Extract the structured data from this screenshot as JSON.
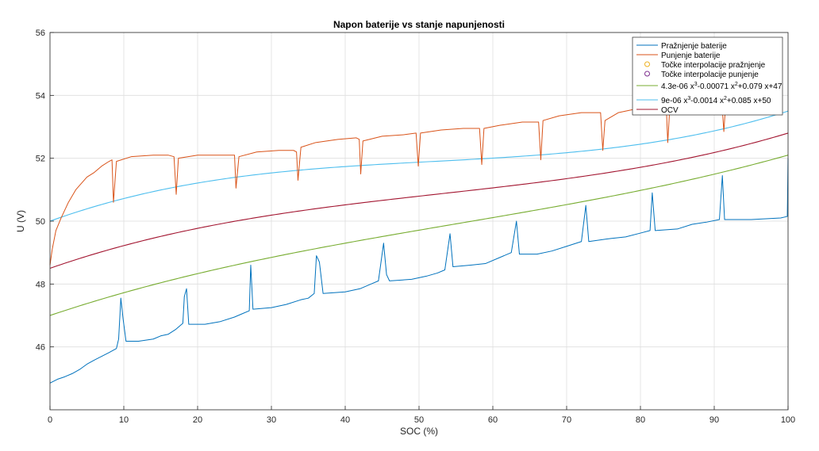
{
  "chart_data": {
    "type": "line",
    "title": "Napon baterije vs stanje napunjenosti",
    "xlabel": "SOC (%)",
    "ylabel": "U (V)",
    "xlim": [
      0,
      100
    ],
    "ylim": [
      44,
      56
    ],
    "xticks": [
      0,
      10,
      20,
      30,
      40,
      50,
      60,
      70,
      80,
      90,
      100
    ],
    "yticks": [
      46,
      48,
      50,
      52,
      54,
      56
    ],
    "grid": true,
    "legend_position": "top-right",
    "colors": {
      "discharge": "#0072BD",
      "charge": "#D95319",
      "interp_discharge_marker": "#EDB120",
      "interp_charge_marker": "#7E2F8E",
      "fit_discharge": "#77AC30",
      "fit_charge": "#4DBEEE",
      "ocv": "#A2142F"
    },
    "series": [
      {
        "key": "discharge",
        "name": "Pražnjenje baterije",
        "style": "line",
        "points": [
          [
            0,
            44.85
          ],
          [
            1,
            44.97
          ],
          [
            2,
            45.05
          ],
          [
            3,
            45.15
          ],
          [
            4,
            45.28
          ],
          [
            5,
            45.45
          ],
          [
            6,
            45.58
          ],
          [
            7,
            45.7
          ],
          [
            8,
            45.82
          ],
          [
            9,
            45.95
          ],
          [
            9.3,
            46.25
          ],
          [
            9.6,
            47.55
          ],
          [
            9.9,
            46.9
          ],
          [
            10.3,
            46.18
          ],
          [
            12,
            46.18
          ],
          [
            14,
            46.25
          ],
          [
            15,
            46.35
          ],
          [
            16,
            46.4
          ],
          [
            17,
            46.55
          ],
          [
            18,
            46.75
          ],
          [
            18.2,
            47.6
          ],
          [
            18.5,
            47.85
          ],
          [
            18.8,
            46.72
          ],
          [
            21,
            46.72
          ],
          [
            23,
            46.8
          ],
          [
            25,
            46.95
          ],
          [
            26,
            47.05
          ],
          [
            27,
            47.15
          ],
          [
            27.2,
            48.6
          ],
          [
            27.5,
            47.2
          ],
          [
            30,
            47.25
          ],
          [
            32,
            47.35
          ],
          [
            34,
            47.5
          ],
          [
            35,
            47.55
          ],
          [
            35.8,
            47.7
          ],
          [
            36.1,
            48.9
          ],
          [
            36.5,
            48.7
          ],
          [
            37,
            47.7
          ],
          [
            40,
            47.75
          ],
          [
            42,
            47.85
          ],
          [
            43.5,
            48.0
          ],
          [
            44.5,
            48.1
          ],
          [
            45.2,
            49.3
          ],
          [
            45.6,
            48.3
          ],
          [
            46,
            48.1
          ],
          [
            49,
            48.15
          ],
          [
            51,
            48.25
          ],
          [
            52.5,
            48.35
          ],
          [
            53.5,
            48.45
          ],
          [
            54.2,
            49.6
          ],
          [
            54.6,
            48.55
          ],
          [
            57,
            48.6
          ],
          [
            59,
            48.65
          ],
          [
            61,
            48.85
          ],
          [
            62.5,
            49.0
          ],
          [
            63.2,
            50.0
          ],
          [
            63.6,
            48.95
          ],
          [
            66,
            48.95
          ],
          [
            68,
            49.05
          ],
          [
            70,
            49.2
          ],
          [
            72,
            49.35
          ],
          [
            72.6,
            50.5
          ],
          [
            73,
            49.35
          ],
          [
            76,
            49.45
          ],
          [
            78,
            49.5
          ],
          [
            80,
            49.62
          ],
          [
            81.3,
            49.7
          ],
          [
            81.6,
            50.9
          ],
          [
            82,
            49.7
          ],
          [
            85,
            49.75
          ],
          [
            87,
            49.9
          ],
          [
            89,
            49.97
          ],
          [
            90.7,
            50.05
          ],
          [
            91.1,
            51.45
          ],
          [
            91.4,
            50.05
          ],
          [
            95,
            50.05
          ],
          [
            99,
            50.1
          ],
          [
            99.9,
            50.15
          ],
          [
            100,
            52.0
          ]
        ]
      },
      {
        "key": "charge",
        "name": "Punjenje baterije",
        "style": "line",
        "points": [
          [
            0,
            48.6
          ],
          [
            0.3,
            49.1
          ],
          [
            0.8,
            49.7
          ],
          [
            1.5,
            50.1
          ],
          [
            2.5,
            50.6
          ],
          [
            3.5,
            51.0
          ],
          [
            5,
            51.4
          ],
          [
            6,
            51.55
          ],
          [
            7,
            51.75
          ],
          [
            8,
            51.9
          ],
          [
            8.4,
            51.95
          ],
          [
            8.6,
            50.6
          ],
          [
            9,
            51.9
          ],
          [
            11,
            52.05
          ],
          [
            14,
            52.1
          ],
          [
            16,
            52.1
          ],
          [
            16.8,
            52.05
          ],
          [
            17.1,
            50.85
          ],
          [
            17.4,
            52.0
          ],
          [
            20,
            52.1
          ],
          [
            23,
            52.1
          ],
          [
            25,
            52.1
          ],
          [
            25.2,
            51.05
          ],
          [
            25.6,
            52.05
          ],
          [
            28,
            52.2
          ],
          [
            31,
            52.25
          ],
          [
            33,
            52.25
          ],
          [
            33.4,
            52.2
          ],
          [
            33.6,
            51.3
          ],
          [
            34,
            52.35
          ],
          [
            36,
            52.5
          ],
          [
            39,
            52.6
          ],
          [
            41.5,
            52.65
          ],
          [
            41.9,
            52.6
          ],
          [
            42.1,
            51.5
          ],
          [
            42.4,
            52.55
          ],
          [
            45,
            52.7
          ],
          [
            48,
            52.75
          ],
          [
            49.6,
            52.8
          ],
          [
            49.9,
            51.75
          ],
          [
            50.2,
            52.8
          ],
          [
            53,
            52.9
          ],
          [
            56,
            52.95
          ],
          [
            58.2,
            52.95
          ],
          [
            58.5,
            51.8
          ],
          [
            58.8,
            52.95
          ],
          [
            61,
            53.05
          ],
          [
            64,
            53.15
          ],
          [
            66.2,
            53.15
          ],
          [
            66.5,
            51.95
          ],
          [
            66.8,
            53.2
          ],
          [
            69,
            53.35
          ],
          [
            72,
            53.45
          ],
          [
            74.6,
            53.45
          ],
          [
            74.9,
            52.25
          ],
          [
            75.2,
            53.2
          ],
          [
            77,
            53.45
          ],
          [
            80,
            53.6
          ],
          [
            83,
            53.7
          ],
          [
            83.5,
            53.65
          ],
          [
            83.7,
            52.5
          ],
          [
            84,
            53.7
          ],
          [
            87,
            53.85
          ],
          [
            90,
            53.9
          ],
          [
            91,
            53.9
          ],
          [
            91.3,
            52.85
          ],
          [
            91.6,
            53.9
          ],
          [
            95,
            54.0
          ]
        ]
      },
      {
        "key": "interp_discharge",
        "name": "Točke interpolacije pražnjenje",
        "style": "marker",
        "points": [
          [
            0.1,
            44.85
          ],
          [
            9.7,
            47.6
          ],
          [
            18.6,
            48.0
          ],
          [
            27.3,
            48.65
          ],
          [
            36.3,
            49.0
          ],
          [
            45.4,
            49.45
          ],
          [
            54.4,
            49.75
          ],
          [
            63.2,
            50.15
          ],
          [
            72.7,
            50.55
          ],
          [
            81.8,
            50.95
          ],
          [
            91.1,
            51.5
          ]
        ]
      },
      {
        "key": "interp_charge",
        "name": "Točke interpolacije punjenje",
        "style": "marker",
        "points": [
          [
            0.2,
            49.55
          ],
          [
            8.6,
            50.55
          ],
          [
            17.2,
            50.8
          ],
          [
            25.3,
            51.05
          ],
          [
            33.8,
            51.25
          ],
          [
            42.3,
            51.45
          ],
          [
            50.1,
            51.7
          ],
          [
            58.7,
            51.78
          ],
          [
            66.7,
            51.93
          ],
          [
            75.1,
            52.22
          ],
          [
            84.0,
            52.5
          ],
          [
            91.5,
            52.85
          ]
        ]
      },
      {
        "key": "fit_discharge",
        "name": "4.3e-06 x³-0.00071 x²+0.079 x+47",
        "legend_text": "4.3e-06 x",
        "legend_exp1": "3",
        "legend_mid": "-0.00071 x",
        "legend_exp2": "2",
        "legend_tail": "+0.079 x+47",
        "style": "function",
        "coefficients": [
          4.3e-06,
          -0.00071,
          0.079,
          47.0
        ]
      },
      {
        "key": "fit_charge",
        "name": "9e-06 x³-0.0014 x²+0.085 x+50",
        "legend_text": "9e-06 x",
        "legend_exp1": "3",
        "legend_mid": "-0.0014 x",
        "legend_exp2": "2",
        "legend_tail": "+0.085 x+50",
        "style": "function",
        "coefficients": [
          9e-06,
          -0.0014,
          0.085,
          50.0
        ]
      },
      {
        "key": "ocv",
        "name": "OCV",
        "style": "function",
        "coefficients": [
          6.65e-06,
          -0.001055,
          0.082,
          48.5
        ]
      }
    ]
  }
}
